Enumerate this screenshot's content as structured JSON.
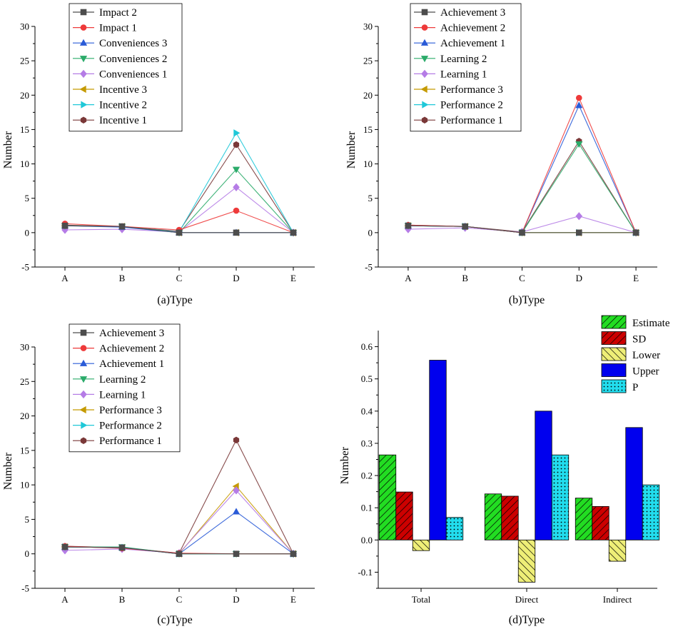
{
  "chart_data": [
    {
      "type": "line",
      "panel": "a",
      "xlabel": "(a)Type",
      "ylabel": "Number",
      "categories": [
        "A",
        "B",
        "C",
        "D",
        "E"
      ],
      "yticks": [
        "-5",
        "0",
        "5",
        "10",
        "15",
        "20",
        "25",
        "30"
      ],
      "ylim": [
        -5,
        30
      ],
      "legend_position": "top-left",
      "series": [
        {
          "name": "Impact 2",
          "values": [
            1.0,
            0.9,
            0.0,
            0.0,
            0.0
          ],
          "color": "#4d4d4d",
          "marker": "square"
        },
        {
          "name": "Impact 1",
          "values": [
            1.3,
            0.9,
            0.4,
            3.2,
            0.0
          ],
          "color": "#ee3a3a",
          "marker": "circle"
        },
        {
          "name": "Conveniences 3",
          "values": [
            1.0,
            0.8,
            0.0,
            0.0,
            0.0
          ],
          "color": "#2a5bd7",
          "marker": "triangle-up"
        },
        {
          "name": "Conveniences 2",
          "values": [
            1.0,
            0.9,
            0.0,
            9.2,
            0.0
          ],
          "color": "#2bab6a",
          "marker": "triangle-down"
        },
        {
          "name": "Conveniences 1",
          "values": [
            0.4,
            0.5,
            0.1,
            6.6,
            0.0
          ],
          "color": "#b57ce6",
          "marker": "diamond"
        },
        {
          "name": "Incentive 3",
          "values": [
            1.0,
            0.9,
            0.0,
            0.0,
            0.0
          ],
          "color": "#c59a00",
          "marker": "triangle-left"
        },
        {
          "name": "Incentive 2",
          "values": [
            1.0,
            0.9,
            0.1,
            14.5,
            0.0
          ],
          "color": "#1fc8d8",
          "marker": "triangle-right"
        },
        {
          "name": "Incentive 1",
          "values": [
            1.1,
            0.9,
            0.2,
            12.8,
            0.0
          ],
          "color": "#7a3838",
          "marker": "hexagon"
        }
      ]
    },
    {
      "type": "line",
      "panel": "b",
      "xlabel": "(b)Type",
      "ylabel": "Number",
      "categories": [
        "A",
        "B",
        "C",
        "D",
        "E"
      ],
      "yticks": [
        "-5",
        "0",
        "5",
        "10",
        "15",
        "20",
        "25",
        "30"
      ],
      "ylim": [
        -5,
        30
      ],
      "legend_position": "top-left",
      "series": [
        {
          "name": "Achievement 3",
          "values": [
            1.0,
            0.9,
            0.0,
            0.0,
            0.0
          ],
          "color": "#4d4d4d",
          "marker": "square"
        },
        {
          "name": "Achievement 2",
          "values": [
            1.1,
            0.9,
            0.0,
            19.6,
            0.0
          ],
          "color": "#ee3a3a",
          "marker": "circle"
        },
        {
          "name": "Achievement 1",
          "values": [
            1.0,
            0.9,
            0.0,
            18.5,
            0.0
          ],
          "color": "#2a5bd7",
          "marker": "triangle-up"
        },
        {
          "name": "Learning 2",
          "values": [
            1.0,
            0.9,
            0.0,
            12.9,
            0.0
          ],
          "color": "#2bab6a",
          "marker": "triangle-down"
        },
        {
          "name": "Learning 1",
          "values": [
            0.5,
            0.7,
            0.1,
            2.4,
            0.0
          ],
          "color": "#b57ce6",
          "marker": "diamond"
        },
        {
          "name": "Performance 3",
          "values": [
            1.0,
            0.9,
            0.0,
            0.0,
            0.0
          ],
          "color": "#c59a00",
          "marker": "triangle-left"
        },
        {
          "name": "Performance 2",
          "values": [
            1.0,
            0.9,
            0.0,
            0.0,
            0.0
          ],
          "color": "#1fc8d8",
          "marker": "triangle-right"
        },
        {
          "name": "Performance 1",
          "values": [
            1.1,
            0.9,
            0.1,
            13.3,
            0.0
          ],
          "color": "#7a3838",
          "marker": "hexagon"
        }
      ]
    },
    {
      "type": "line",
      "panel": "c",
      "xlabel": "(c)Type",
      "ylabel": "Number",
      "categories": [
        "A",
        "B",
        "C",
        "D",
        "E"
      ],
      "yticks": [
        "-5",
        "0",
        "5",
        "10",
        "15",
        "20",
        "25",
        "30"
      ],
      "ylim": [
        -5,
        30
      ],
      "legend_position": "top-left",
      "series": [
        {
          "name": "Achievement 3",
          "values": [
            1.0,
            0.9,
            0.0,
            0.0,
            0.0
          ],
          "color": "#4d4d4d",
          "marker": "square"
        },
        {
          "name": "Achievement 2",
          "values": [
            1.1,
            0.8,
            0.1,
            0.0,
            0.0
          ],
          "color": "#ee3a3a",
          "marker": "circle"
        },
        {
          "name": "Achievement 1",
          "values": [
            1.0,
            0.9,
            0.0,
            6.1,
            0.0
          ],
          "color": "#2a5bd7",
          "marker": "triangle-up"
        },
        {
          "name": "Learning 2",
          "values": [
            1.0,
            1.0,
            0.0,
            0.0,
            0.0
          ],
          "color": "#2bab6a",
          "marker": "triangle-down"
        },
        {
          "name": "Learning 1",
          "values": [
            0.5,
            0.7,
            0.1,
            9.2,
            0.0
          ],
          "color": "#b57ce6",
          "marker": "diamond"
        },
        {
          "name": "Performance 3",
          "values": [
            1.0,
            0.9,
            0.0,
            9.8,
            0.0
          ],
          "color": "#c59a00",
          "marker": "triangle-left"
        },
        {
          "name": "Performance 2",
          "values": [
            1.0,
            0.9,
            0.0,
            0.0,
            0.0
          ],
          "color": "#1fc8d8",
          "marker": "triangle-right"
        },
        {
          "name": "Performance 1",
          "values": [
            1.1,
            0.9,
            0.1,
            16.5,
            0.0
          ],
          "color": "#7a3838",
          "marker": "hexagon"
        }
      ]
    },
    {
      "type": "bar",
      "panel": "d",
      "xlabel": "(d)Type",
      "ylabel": "Number",
      "categories": [
        "Total",
        "Direct",
        "Indirect"
      ],
      "yticks": [
        "-0.1",
        "0.0",
        "0.1",
        "0.2",
        "0.3",
        "0.4",
        "0.5",
        "0.6"
      ],
      "ylim": [
        -0.15,
        0.65
      ],
      "legend_position": "top-right",
      "series": [
        {
          "name": "Estimate",
          "values": [
            0.264,
            0.143,
            0.13
          ],
          "color": "#22dd22",
          "pattern": "hatch-left"
        },
        {
          "name": "SD",
          "values": [
            0.149,
            0.136,
            0.104
          ],
          "color": "#cc0000",
          "pattern": "hatch-left"
        },
        {
          "name": "Lower",
          "values": [
            -0.033,
            -0.131,
            -0.066
          ],
          "color": "#eeee77",
          "pattern": "hatch-right"
        },
        {
          "name": "Upper",
          "values": [
            0.558,
            0.4,
            0.349
          ],
          "color": "#0000ee",
          "pattern": "solid"
        },
        {
          "name": "P",
          "values": [
            0.07,
            0.264,
            0.171
          ],
          "color": "#22ddee",
          "pattern": "dots"
        }
      ]
    }
  ]
}
